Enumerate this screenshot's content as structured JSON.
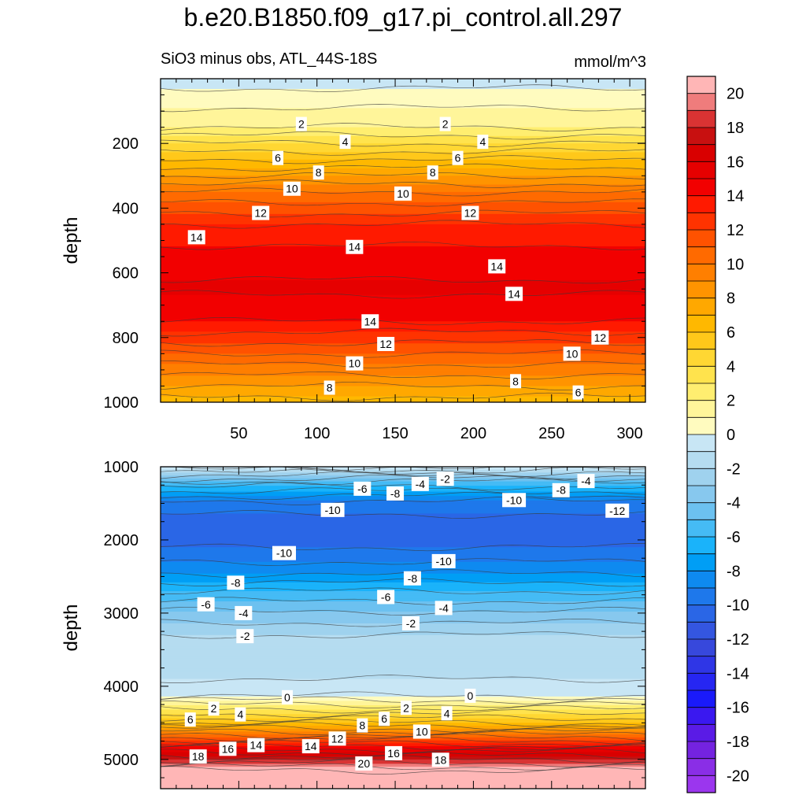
{
  "title": "b.e20.B1850.f09_g17.pi_control.all.297",
  "subtitle": "SiO3 minus obs, ATL_44S-18S",
  "units": "mmol/m^3",
  "chart_data": [
    {
      "type": "contour",
      "panel": "upper",
      "xlabel": "",
      "ylabel": "depth",
      "xlim": [
        0,
        310
      ],
      "ylim": [
        0,
        1000
      ],
      "y_inverted": true,
      "xticks": [
        50,
        100,
        150,
        200,
        250,
        300
      ],
      "yticks": [
        200,
        400,
        600,
        800,
        1000
      ],
      "depth_profile": [
        {
          "depth": 0,
          "value": -0.5
        },
        {
          "depth": 60,
          "value": 0.5
        },
        {
          "depth": 150,
          "value": 2
        },
        {
          "depth": 250,
          "value": 6
        },
        {
          "depth": 350,
          "value": 10
        },
        {
          "depth": 450,
          "value": 13
        },
        {
          "depth": 550,
          "value": 14.5
        },
        {
          "depth": 650,
          "value": 15.2
        },
        {
          "depth": 750,
          "value": 14
        },
        {
          "depth": 850,
          "value": 11
        },
        {
          "depth": 950,
          "value": 8
        },
        {
          "depth": 1000,
          "value": 6.5
        }
      ],
      "contour_labels": [
        {
          "x": 90,
          "depth": 140,
          "text": "2"
        },
        {
          "x": 182,
          "depth": 140,
          "text": "2"
        },
        {
          "x": 118,
          "depth": 195,
          "text": "4"
        },
        {
          "x": 206,
          "depth": 195,
          "text": "4"
        },
        {
          "x": 75,
          "depth": 245,
          "text": "6"
        },
        {
          "x": 190,
          "depth": 245,
          "text": "6"
        },
        {
          "x": 101,
          "depth": 290,
          "text": "8"
        },
        {
          "x": 174,
          "depth": 290,
          "text": "8"
        },
        {
          "x": 84,
          "depth": 340,
          "text": "10"
        },
        {
          "x": 155,
          "depth": 355,
          "text": "10"
        },
        {
          "x": 64,
          "depth": 415,
          "text": "12"
        },
        {
          "x": 198,
          "depth": 415,
          "text": "12"
        },
        {
          "x": 23,
          "depth": 490,
          "text": "14"
        },
        {
          "x": 124,
          "depth": 520,
          "text": "14"
        },
        {
          "x": 215,
          "depth": 580,
          "text": "14"
        },
        {
          "x": 226,
          "depth": 665,
          "text": "14"
        },
        {
          "x": 134,
          "depth": 750,
          "text": "14"
        },
        {
          "x": 144,
          "depth": 820,
          "text": "12"
        },
        {
          "x": 281,
          "depth": 800,
          "text": "12"
        },
        {
          "x": 124,
          "depth": 880,
          "text": "10"
        },
        {
          "x": 263,
          "depth": 850,
          "text": "10"
        },
        {
          "x": 108,
          "depth": 955,
          "text": "8"
        },
        {
          "x": 227,
          "depth": 935,
          "text": "8"
        },
        {
          "x": 267,
          "depth": 970,
          "text": "6"
        }
      ]
    },
    {
      "type": "contour",
      "panel": "lower",
      "xlabel": "",
      "ylabel": "depth",
      "xlim": [
        0,
        310
      ],
      "ylim": [
        1000,
        5400
      ],
      "y_inverted": true,
      "yticks": [
        1000,
        2000,
        3000,
        4000,
        5000
      ],
      "depth_profile": [
        {
          "depth": 1000,
          "value": 0
        },
        {
          "depth": 1200,
          "value": -5
        },
        {
          "depth": 1500,
          "value": -9.5
        },
        {
          "depth": 1800,
          "value": -10.5
        },
        {
          "depth": 2100,
          "value": -10
        },
        {
          "depth": 2400,
          "value": -8.5
        },
        {
          "depth": 2700,
          "value": -6
        },
        {
          "depth": 3000,
          "value": -3.8
        },
        {
          "depth": 3300,
          "value": -2
        },
        {
          "depth": 3700,
          "value": -1.5
        },
        {
          "depth": 4100,
          "value": -0.5
        },
        {
          "depth": 4250,
          "value": 2
        },
        {
          "depth": 4500,
          "value": 6
        },
        {
          "depth": 4700,
          "value": 11
        },
        {
          "depth": 4900,
          "value": 16
        },
        {
          "depth": 5050,
          "value": 19
        },
        {
          "depth": 5150,
          "value": 21
        },
        {
          "depth": 5400,
          "value": 21
        }
      ],
      "contour_labels": [
        {
          "x": 182,
          "depth": 1165,
          "text": "-2"
        },
        {
          "x": 166,
          "depth": 1235,
          "text": "-4"
        },
        {
          "x": 272,
          "depth": 1195,
          "text": "-4"
        },
        {
          "x": 129,
          "depth": 1300,
          "text": "-6"
        },
        {
          "x": 150,
          "depth": 1365,
          "text": "-8"
        },
        {
          "x": 256,
          "depth": 1320,
          "text": "-8"
        },
        {
          "x": 110,
          "depth": 1590,
          "text": "-10"
        },
        {
          "x": 226,
          "depth": 1455,
          "text": "-10"
        },
        {
          "x": 292,
          "depth": 1600,
          "text": "-12"
        },
        {
          "x": 79,
          "depth": 2180,
          "text": "-10"
        },
        {
          "x": 181,
          "depth": 2290,
          "text": "-10"
        },
        {
          "x": 48,
          "depth": 2585,
          "text": "-8"
        },
        {
          "x": 161,
          "depth": 2525,
          "text": "-8"
        },
        {
          "x": 29,
          "depth": 2880,
          "text": "-6"
        },
        {
          "x": 144,
          "depth": 2780,
          "text": "-6"
        },
        {
          "x": 53,
          "depth": 3000,
          "text": "-4"
        },
        {
          "x": 181,
          "depth": 2930,
          "text": "-4"
        },
        {
          "x": 160,
          "depth": 3140,
          "text": "-2"
        },
        {
          "x": 54,
          "depth": 3315,
          "text": "-2"
        },
        {
          "x": 81,
          "depth": 4150,
          "text": "0"
        },
        {
          "x": 198,
          "depth": 4130,
          "text": "0"
        },
        {
          "x": 34,
          "depth": 4305,
          "text": "2"
        },
        {
          "x": 157,
          "depth": 4295,
          "text": "2"
        },
        {
          "x": 19,
          "depth": 4455,
          "text": "6"
        },
        {
          "x": 51,
          "depth": 4385,
          "text": "4"
        },
        {
          "x": 183,
          "depth": 4370,
          "text": "4"
        },
        {
          "x": 143,
          "depth": 4445,
          "text": "6"
        },
        {
          "x": 129,
          "depth": 4535,
          "text": "8"
        },
        {
          "x": 167,
          "depth": 4620,
          "text": "10"
        },
        {
          "x": 113,
          "depth": 4715,
          "text": "12"
        },
        {
          "x": 61,
          "depth": 4805,
          "text": "14"
        },
        {
          "x": 96,
          "depth": 4820,
          "text": "14"
        },
        {
          "x": 43,
          "depth": 4855,
          "text": "16"
        },
        {
          "x": 149,
          "depth": 4915,
          "text": "16"
        },
        {
          "x": 24,
          "depth": 4960,
          "text": "18"
        },
        {
          "x": 179,
          "depth": 5005,
          "text": "18"
        },
        {
          "x": 130,
          "depth": 5055,
          "text": "20"
        }
      ]
    }
  ],
  "colorbar": {
    "min": -21,
    "max": 21,
    "labels": [
      "20",
      "18",
      "16",
      "14",
      "12",
      "10",
      "8",
      "6",
      "4",
      "2",
      "0",
      "-2",
      "-4",
      "-6",
      "-8",
      "-10",
      "-12",
      "-14",
      "-16",
      "-18",
      "-20"
    ],
    "label_values": [
      20,
      18,
      16,
      14,
      12,
      10,
      8,
      6,
      4,
      2,
      0,
      -2,
      -4,
      -6,
      -8,
      -10,
      -12,
      -14,
      -16,
      -18,
      -20
    ],
    "colors": [
      "#FFB6B6",
      "#EF7C7C",
      "#D93333",
      "#C81010",
      "#D90000",
      "#E60000",
      "#F20000",
      "#FF1A00",
      "#FF3300",
      "#FF5200",
      "#FF6A00",
      "#FF7F00",
      "#FF9400",
      "#FFA800",
      "#FFB800",
      "#FFC81A",
      "#FFD733",
      "#FFE34D",
      "#FFEE70",
      "#FFF59A",
      "#FFFBBF",
      "#C8E6F5",
      "#B5DCF0",
      "#9FD2EE",
      "#87C8EE",
      "#6CC1F0",
      "#45BBF5",
      "#1AB3FA",
      "#009EF5",
      "#0E8AF0",
      "#1E78EB",
      "#2A66E6",
      "#3456E0",
      "#3748DC",
      "#2F36E6",
      "#2626F2",
      "#1A1AFA",
      "#3A18F0",
      "#5A1BE6",
      "#7423E0",
      "#8A2EE6",
      "#9B36EE"
    ]
  }
}
